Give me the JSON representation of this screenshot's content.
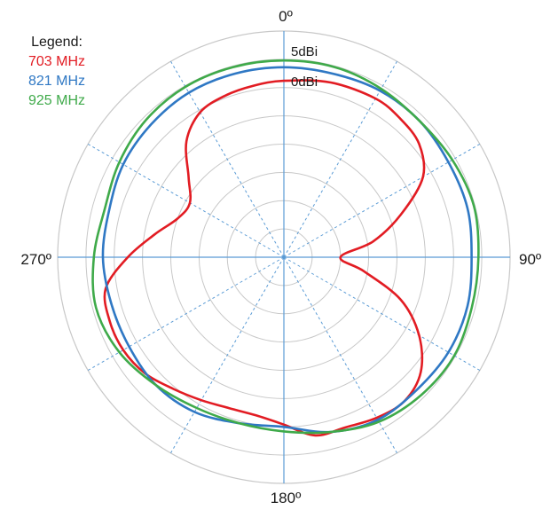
{
  "chart_data": {
    "type": "polar-line",
    "title": "",
    "angle_labels": [
      "0º",
      "90º",
      "180º",
      "270º"
    ],
    "radial_labels": [
      "5dBi",
      "0dBi"
    ],
    "legend": {
      "title": "Legend:",
      "position": "top-left"
    },
    "grid": true,
    "angular_spoke_step_deg": 30,
    "radial_rings_count": 8,
    "series": [
      {
        "name": "703 MHz",
        "color": "#e21c23",
        "points": [
          [
            0,
            0.78
          ],
          [
            15,
            0.8
          ],
          [
            30,
            0.81
          ],
          [
            40,
            0.8
          ],
          [
            50,
            0.78
          ],
          [
            60,
            0.71
          ],
          [
            70,
            0.55
          ],
          [
            80,
            0.4
          ],
          [
            90,
            0.25
          ],
          [
            100,
            0.36
          ],
          [
            110,
            0.55
          ],
          [
            120,
            0.69
          ],
          [
            130,
            0.79
          ],
          [
            140,
            0.83
          ],
          [
            150,
            0.82
          ],
          [
            160,
            0.8
          ],
          [
            170,
            0.8
          ],
          [
            180,
            0.74
          ],
          [
            190,
            0.71
          ],
          [
            200,
            0.71
          ],
          [
            210,
            0.73
          ],
          [
            220,
            0.76
          ],
          [
            230,
            0.8
          ],
          [
            240,
            0.82
          ],
          [
            250,
            0.82
          ],
          [
            260,
            0.8
          ],
          [
            270,
            0.69
          ],
          [
            280,
            0.58
          ],
          [
            290,
            0.5
          ],
          [
            300,
            0.48
          ],
          [
            310,
            0.55
          ],
          [
            320,
            0.67
          ],
          [
            330,
            0.74
          ],
          [
            340,
            0.76
          ],
          [
            350,
            0.77
          ],
          [
            360,
            0.78
          ]
        ]
      },
      {
        "name": "821 MHz",
        "color": "#2f78c4",
        "points": [
          [
            0,
            0.84
          ],
          [
            15,
            0.84
          ],
          [
            30,
            0.85
          ],
          [
            45,
            0.85
          ],
          [
            60,
            0.84
          ],
          [
            75,
            0.84
          ],
          [
            90,
            0.83
          ],
          [
            105,
            0.84
          ],
          [
            120,
            0.84
          ],
          [
            135,
            0.83
          ],
          [
            150,
            0.83
          ],
          [
            165,
            0.8
          ],
          [
            180,
            0.75
          ],
          [
            195,
            0.76
          ],
          [
            210,
            0.79
          ],
          [
            225,
            0.8
          ],
          [
            240,
            0.79
          ],
          [
            255,
            0.79
          ],
          [
            270,
            0.8
          ],
          [
            285,
            0.8
          ],
          [
            300,
            0.82
          ],
          [
            315,
            0.83
          ],
          [
            330,
            0.84
          ],
          [
            345,
            0.84
          ],
          [
            360,
            0.84
          ]
        ]
      },
      {
        "name": "925 MHz",
        "color": "#3faa4a",
        "points": [
          [
            0,
            0.87
          ],
          [
            15,
            0.87
          ],
          [
            30,
            0.86
          ],
          [
            45,
            0.85
          ],
          [
            60,
            0.86
          ],
          [
            75,
            0.87
          ],
          [
            90,
            0.86
          ],
          [
            105,
            0.86
          ],
          [
            120,
            0.87
          ],
          [
            135,
            0.86
          ],
          [
            150,
            0.84
          ],
          [
            165,
            0.8
          ],
          [
            180,
            0.77
          ],
          [
            195,
            0.76
          ],
          [
            210,
            0.77
          ],
          [
            225,
            0.8
          ],
          [
            240,
            0.84
          ],
          [
            255,
            0.86
          ],
          [
            270,
            0.84
          ],
          [
            285,
            0.82
          ],
          [
            300,
            0.84
          ],
          [
            315,
            0.86
          ],
          [
            330,
            0.87
          ],
          [
            345,
            0.87
          ],
          [
            360,
            0.87
          ]
        ]
      }
    ]
  }
}
